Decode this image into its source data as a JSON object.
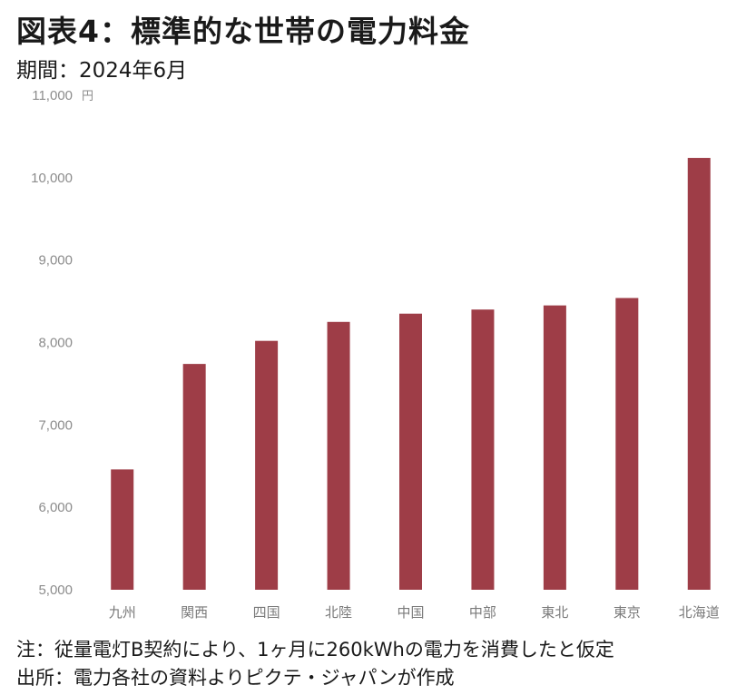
{
  "title": "図表4：標準的な世帯の電力料金",
  "period": "期間：2024年6月",
  "chart_data": {
    "type": "bar",
    "unit": "円",
    "categories": [
      "九州",
      "関西",
      "四国",
      "北陸",
      "中国",
      "中部",
      "東北",
      "東京",
      "北海道"
    ],
    "values": [
      6460,
      7740,
      8020,
      8250,
      8350,
      8400,
      8450,
      8540,
      10240
    ],
    "ylim": [
      5000,
      11000
    ],
    "yticks": [
      5000,
      6000,
      7000,
      8000,
      9000,
      10000,
      11000
    ],
    "ytick_labels": [
      "5,000",
      "6,000",
      "7,000",
      "8,000",
      "9,000",
      "10,000",
      "11,000"
    ],
    "bar_color": "#9e3d47",
    "grid": false
  },
  "notes": {
    "note1": "注：従量電灯B契約により、1ヶ月に260kWhの電力を消費したと仮定",
    "note2": "出所：電力各社の資料よりピクテ・ジャパンが作成"
  }
}
